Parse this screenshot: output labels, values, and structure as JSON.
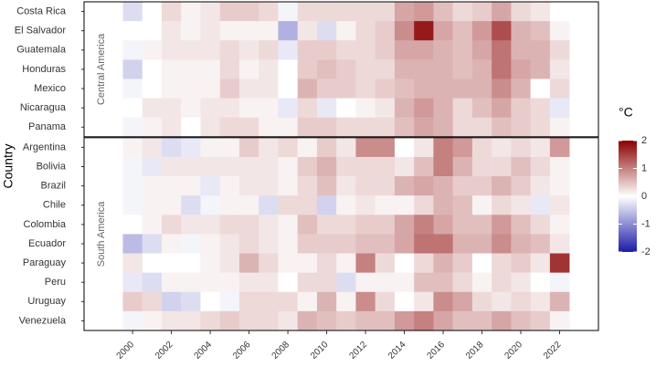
{
  "chart_data": {
    "type": "heatmap",
    "ylabel": "Country",
    "x": [
      2000,
      2001,
      2002,
      2003,
      2004,
      2005,
      2006,
      2007,
      2008,
      2009,
      2010,
      2011,
      2012,
      2013,
      2014,
      2015,
      2016,
      2017,
      2018,
      2019,
      2020,
      2021,
      2022
    ],
    "xlim": [
      1997.5,
      2024
    ],
    "xticks": [
      2000,
      2002,
      2004,
      2006,
      2008,
      2010,
      2012,
      2014,
      2016,
      2018,
      2020,
      2022
    ],
    "colors": {
      "low": "#1c1ca8",
      "mid": "#ffffff",
      "high": "#8b0000"
    },
    "clim": [
      -2,
      2
    ],
    "legend": {
      "title": "°C",
      "ticks": [
        2,
        1,
        0,
        -1,
        -2
      ]
    },
    "panels": [
      {
        "label": "Central America",
        "categories": [
          "Costa Rica",
          "El Salvador",
          "Guatemala",
          "Honduras",
          "Mexico",
          "Nicaragua",
          "Panama"
        ],
        "values": [
          [
            -0.3,
            0,
            0.3,
            0.1,
            0.2,
            0.4,
            0.4,
            0.3,
            -0.1,
            0.3,
            0.3,
            0.3,
            0.3,
            0.3,
            0.7,
            0.8,
            0.5,
            0.3,
            0.4,
            0.7,
            0.3,
            0.2,
            0
          ],
          [
            0,
            0,
            0.2,
            0.1,
            0.2,
            0.1,
            0.1,
            0.1,
            -0.7,
            0.2,
            -0.3,
            0.1,
            0.3,
            0.4,
            0.9,
            1.8,
            0.7,
            0.5,
            0.8,
            1.4,
            0.6,
            0.5,
            0.1
          ],
          [
            -0.1,
            0.1,
            0.2,
            0.2,
            0.2,
            0.3,
            0.2,
            0.3,
            -0.2,
            0.4,
            0.4,
            0.3,
            0.3,
            0.4,
            0.7,
            0.7,
            0.6,
            0.5,
            0.7,
            1.1,
            0.6,
            0.6,
            0.3
          ],
          [
            -0.4,
            0,
            0.1,
            0.1,
            0.1,
            0.3,
            0.1,
            0.2,
            0,
            0.4,
            0.5,
            0.4,
            0.3,
            0.3,
            0.6,
            0.6,
            0.6,
            0.5,
            0.6,
            1.1,
            0.7,
            0.6,
            0.2
          ],
          [
            -0.1,
            0,
            0.1,
            0.1,
            0.1,
            0.4,
            0.2,
            0.2,
            0,
            0.6,
            0.4,
            0.4,
            0.3,
            0.4,
            0.5,
            0.6,
            0.6,
            0.6,
            0.6,
            0.9,
            0.6,
            0,
            0.3
          ],
          [
            0,
            0.2,
            0.2,
            0.1,
            0.2,
            0.2,
            0.1,
            0.1,
            -0.2,
            0.3,
            -0.2,
            0,
            0.1,
            0.2,
            0.6,
            0.8,
            0.6,
            0.3,
            0.5,
            0.7,
            0.4,
            0.3,
            -0.2
          ],
          [
            -0.1,
            0.1,
            0.2,
            0,
            0.2,
            0.3,
            0.3,
            0.1,
            0.1,
            0.4,
            0.4,
            0.3,
            0.3,
            0.3,
            0.5,
            0.7,
            0.6,
            0.3,
            0.3,
            0.5,
            0.4,
            0.3,
            0.1
          ]
        ]
      },
      {
        "label": "South America",
        "categories": [
          "Argentina",
          "Bolivia",
          "Brazil",
          "Chile",
          "Colombia",
          "Ecuador",
          "Paraguay",
          "Peru",
          "Uruguay",
          "Venezuela"
        ],
        "values": [
          [
            0.1,
            0.2,
            -0.3,
            -0.2,
            0.1,
            0.1,
            0.4,
            0.2,
            0.3,
            0.1,
            0.4,
            0.2,
            0.9,
            0.9,
            0,
            0.2,
            1.0,
            0.8,
            0.3,
            0.2,
            0.3,
            0.2,
            0.8
          ],
          [
            -0.1,
            -0.2,
            0.2,
            0.2,
            0.2,
            0.2,
            0.2,
            0.2,
            0.1,
            0.4,
            0.6,
            0.3,
            0.3,
            0.3,
            0.2,
            0.5,
            1.0,
            0.6,
            0.3,
            0.3,
            0.5,
            0.3,
            0.1
          ],
          [
            -0.1,
            0.1,
            0.1,
            0.1,
            -0.2,
            0.1,
            0.2,
            0.2,
            0.1,
            0.3,
            0.5,
            0.2,
            0.3,
            0.3,
            0.6,
            0.7,
            0.6,
            0.4,
            0.4,
            0.6,
            0.4,
            0.2,
            0.1
          ],
          [
            -0.1,
            0.1,
            0.1,
            -0.3,
            -0.1,
            0.1,
            0.1,
            -0.3,
            0.3,
            0.3,
            -0.4,
            0.1,
            0.2,
            0.1,
            0.1,
            0.3,
            0.6,
            0.5,
            0.1,
            0.3,
            0.2,
            -0.2,
            0.2
          ],
          [
            0,
            0.1,
            0.3,
            0.2,
            0.2,
            0.3,
            0.3,
            0.2,
            0.1,
            0.5,
            0.3,
            0.3,
            0.4,
            0.4,
            0.7,
            1.0,
            0.7,
            0.5,
            0.5,
            0.8,
            0.5,
            0.3,
            0.1
          ],
          [
            -0.6,
            -0.3,
            0.1,
            -0.1,
            0.1,
            0.2,
            0.3,
            0.2,
            0.1,
            0.4,
            0.4,
            0.4,
            0.5,
            0.5,
            0.7,
            1.1,
            1.1,
            0.6,
            0.6,
            0.9,
            0.6,
            0.5,
            0.2
          ],
          [
            0.2,
            0,
            0,
            0,
            0.1,
            0.2,
            0.6,
            0.3,
            0.1,
            0.1,
            0.3,
            0.1,
            1.0,
            0.3,
            0,
            0.3,
            0.6,
            0.4,
            0,
            0.3,
            0.4,
            0.2,
            1.6
          ],
          [
            -0.2,
            -0.3,
            0.1,
            0.1,
            0.1,
            0.1,
            0.2,
            0.2,
            0,
            0.3,
            0.3,
            -0.3,
            0.1,
            0.1,
            0.1,
            0.5,
            0.5,
            0.3,
            0.1,
            0.3,
            0.2,
            0,
            -0.1
          ],
          [
            0.4,
            0.3,
            -0.4,
            -0.3,
            0,
            -0.1,
            0.3,
            0.3,
            0.3,
            0.1,
            0.6,
            0.1,
            0.9,
            0.3,
            0,
            0.2,
            0.9,
            0.7,
            0.3,
            0.2,
            0.3,
            0.2,
            0.6
          ],
          [
            -0.1,
            0.1,
            0.2,
            0.2,
            0.3,
            0.4,
            0.3,
            0.3,
            0.2,
            0.6,
            0.5,
            0.4,
            0.5,
            0.5,
            0.8,
            1.0,
            0.7,
            0.5,
            0.5,
            0.7,
            0.5,
            0.4,
            0.1
          ]
        ]
      }
    ]
  }
}
